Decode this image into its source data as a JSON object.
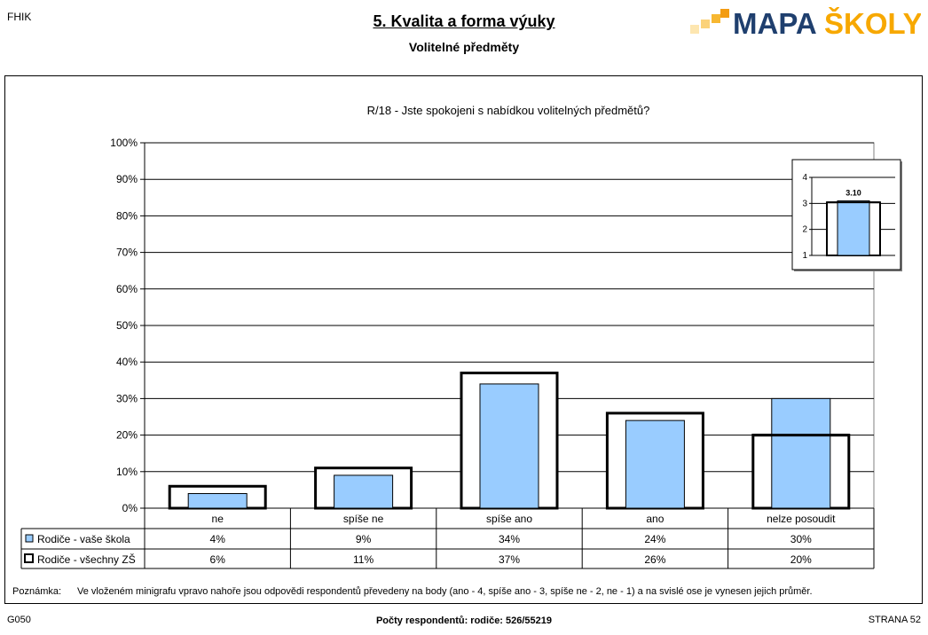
{
  "header": {
    "school_code": "FHIK",
    "title": "5. Kvalita a forma výuky",
    "subtitle": "Volitelné předměty",
    "logo_part1": "MAPA",
    "logo_part2": "ŠKOLY"
  },
  "colors": {
    "school_bar": "#99ccff",
    "all_bar_fill": "#ffffff",
    "all_bar_stroke": "#000000",
    "logo_blue": "#1f3f6e",
    "logo_orange": "#f7a800",
    "logo_squares": [
      "#fde6b0",
      "#fbd27a",
      "#f7b731",
      "#f39c12"
    ]
  },
  "chart_data": {
    "type": "bar",
    "title": "R/18 - Jste spokojeni s nabídkou volitelných předmětů?",
    "categories": [
      "ne",
      "spíše ne",
      "spíše ano",
      "ano",
      "nelze posoudit"
    ],
    "y_ticks": [
      "0%",
      "10%",
      "20%",
      "30%",
      "40%",
      "50%",
      "60%",
      "70%",
      "80%",
      "90%",
      "100%"
    ],
    "ylim": [
      0,
      100
    ],
    "grid": true,
    "series": [
      {
        "name": "Rodiče - vaše škola",
        "values": [
          4,
          9,
          34,
          24,
          30
        ],
        "labels": [
          "4%",
          "9%",
          "34%",
          "24%",
          "30%"
        ]
      },
      {
        "name": "Rodiče - všechny ZŠ",
        "values": [
          6,
          11,
          37,
          26,
          20
        ],
        "labels": [
          "6%",
          "11%",
          "37%",
          "26%",
          "20%"
        ]
      }
    ],
    "mini_chart": {
      "y_ticks": [
        "1",
        "2",
        "3",
        "4"
      ],
      "ylim": [
        1,
        4
      ],
      "school_value": 3.1,
      "all_value": 3.04,
      "label": "3.10"
    },
    "note_label": "Poznámka:",
    "note_text": "Ve vloženém minigrafu vpravo nahoře jsou odpovědi respondentů převedeny na body (ano - 4, spíše ano - 3, spíše ne - 2, ne - 1) a na svislé ose je vynesen jejich průměr."
  },
  "footer": {
    "left": "G050",
    "center": "Počty respondentů:   rodiče: 526/55219",
    "right": "STRANA  52"
  }
}
